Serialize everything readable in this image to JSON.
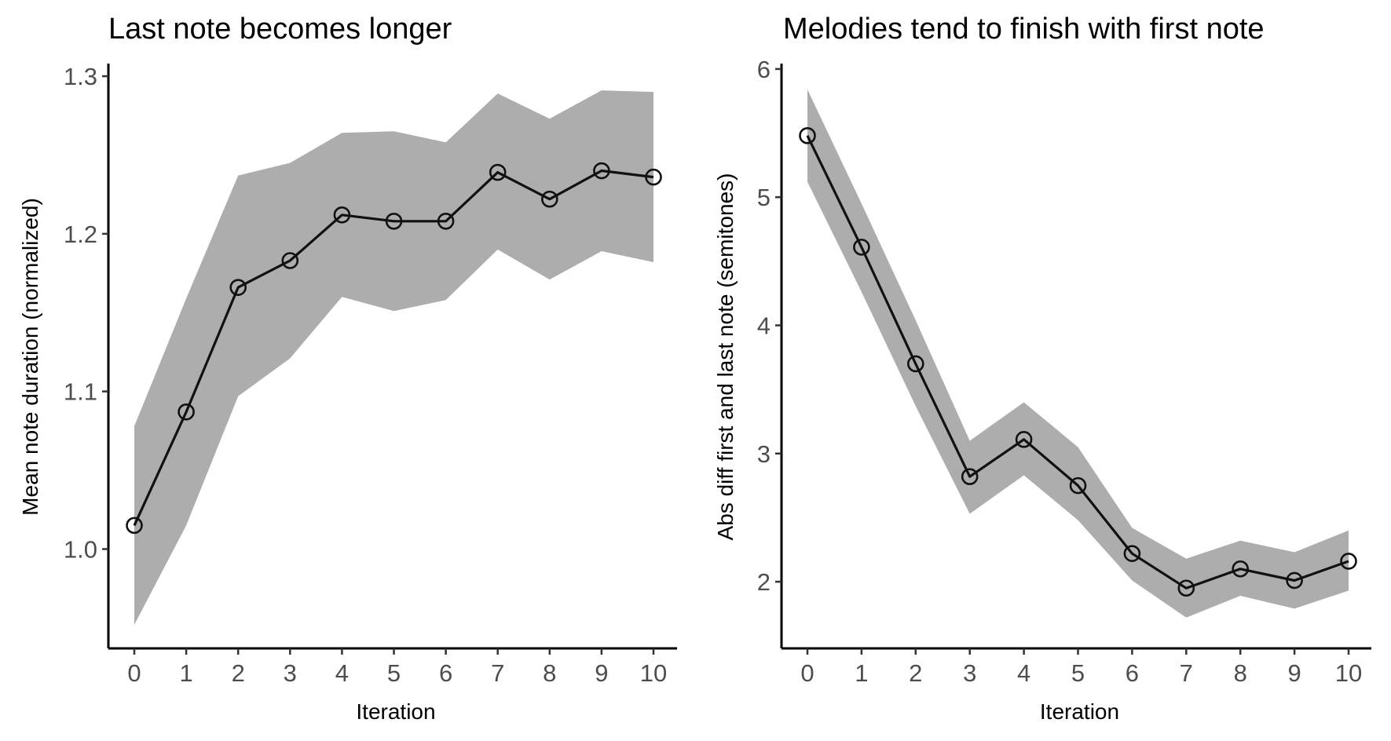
{
  "chart_data": [
    {
      "type": "line",
      "title": "Last note becomes longer",
      "xlabel": "Iteration",
      "ylabel": "Mean note duration (normalized)",
      "x": [
        0,
        1,
        2,
        3,
        4,
        5,
        6,
        7,
        8,
        9,
        10
      ],
      "xticks": [
        "0",
        "1",
        "2",
        "3",
        "4",
        "5",
        "6",
        "7",
        "8",
        "9",
        "10"
      ],
      "yticks": [
        "1.0",
        "1.1",
        "1.2",
        "1.3"
      ],
      "ylim": [
        0.937,
        1.307
      ],
      "series": [
        {
          "values": [
            1.015,
            1.087,
            1.166,
            1.183,
            1.212,
            1.208,
            1.208,
            1.239,
            1.222,
            1.24,
            1.236
          ],
          "ci_low": [
            0.952,
            1.015,
            1.097,
            1.121,
            1.16,
            1.151,
            1.158,
            1.19,
            1.171,
            1.189,
            1.182
          ],
          "ci_high": [
            1.078,
            1.159,
            1.237,
            1.245,
            1.264,
            1.265,
            1.258,
            1.289,
            1.273,
            1.291,
            1.29
          ]
        }
      ],
      "colors": {
        "ribbon": "#adadad",
        "line": "#111111"
      },
      "grid": false,
      "legend": "none"
    },
    {
      "type": "line",
      "title": "Melodies tend to finish with first note",
      "xlabel": "Iteration",
      "ylabel": "Abs diff first and last note (semitones)",
      "x": [
        0,
        1,
        2,
        3,
        4,
        5,
        6,
        7,
        8,
        9,
        10
      ],
      "xticks": [
        "0",
        "1",
        "2",
        "3",
        "4",
        "5",
        "6",
        "7",
        "8",
        "9",
        "10"
      ],
      "yticks": [
        "2",
        "3",
        "4",
        "5",
        "6"
      ],
      "ylim": [
        1.48,
        6.03
      ],
      "series": [
        {
          "values": [
            5.48,
            4.61,
            3.7,
            2.82,
            3.11,
            2.75,
            2.22,
            1.95,
            2.1,
            2.01,
            2.16
          ],
          "ci_low": [
            5.12,
            4.26,
            3.37,
            2.53,
            2.83,
            2.48,
            2.01,
            1.72,
            1.89,
            1.79,
            1.93
          ],
          "ci_high": [
            5.84,
            4.95,
            4.04,
            3.1,
            3.4,
            3.05,
            2.42,
            2.18,
            2.32,
            2.23,
            2.4
          ]
        }
      ],
      "colors": {
        "ribbon": "#adadad",
        "line": "#111111"
      },
      "grid": false,
      "legend": "none"
    }
  ]
}
